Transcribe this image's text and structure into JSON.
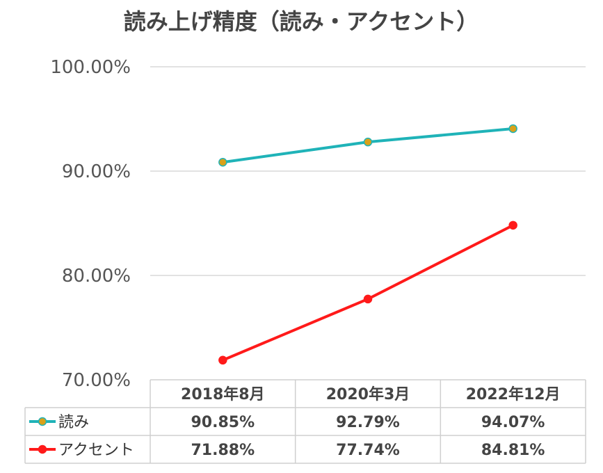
{
  "chart_data": {
    "type": "line",
    "title": "読み上げ精度（読み・アクセント）",
    "categories": [
      "2018年8月",
      "2020年3月",
      "2022年12月"
    ],
    "series": [
      {
        "name": "読み",
        "values": [
          90.85,
          92.79,
          94.07
        ],
        "labels": [
          "90.85%",
          "92.79%",
          "94.07%"
        ],
        "color": "#1fb3b8",
        "marker_color": "#d9a11a"
      },
      {
        "name": "アクセント",
        "values": [
          71.88,
          77.74,
          84.81
        ],
        "labels": [
          "71.88%",
          "77.74%",
          "84.81%"
        ],
        "color": "#ff1a1a",
        "marker_color": "#ff1a1a"
      }
    ],
    "ylim": [
      70,
      100
    ],
    "y_ticks": [
      70,
      80,
      90,
      100
    ],
    "y_tick_labels": [
      "70.00%",
      "80.00%",
      "90.00%",
      "100.00%"
    ],
    "grid": true,
    "legend": "data-table-bottom"
  }
}
